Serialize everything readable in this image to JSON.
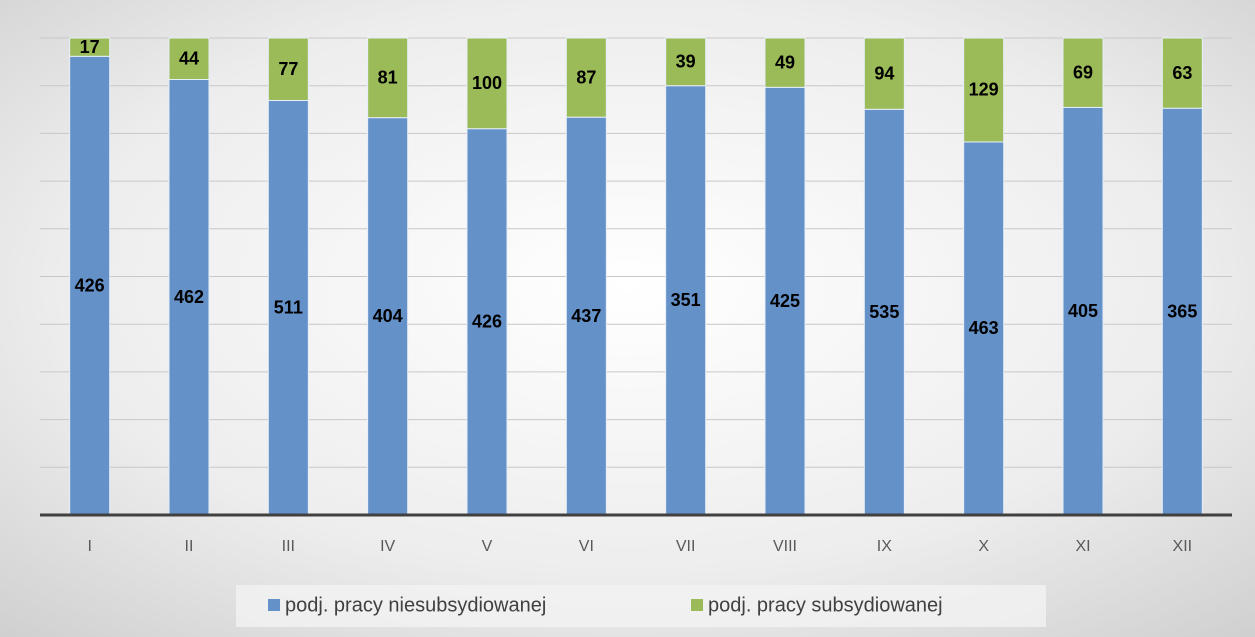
{
  "chart_data": {
    "type": "bar",
    "stacking": "percent",
    "categories": [
      "I",
      "II",
      "III",
      "IV",
      "V",
      "VI",
      "VII",
      "VIII",
      "IX",
      "X",
      "XI",
      "XII"
    ],
    "series": [
      {
        "name": "podj. pracy niesubsydiowanej",
        "color": "#6591c9",
        "values": [
          426,
          462,
          511,
          404,
          426,
          437,
          351,
          425,
          535,
          463,
          405,
          365
        ]
      },
      {
        "name": "podj. pracy subsydiowanej",
        "color": "#9bbb59",
        "values": [
          17,
          44,
          77,
          81,
          100,
          87,
          39,
          49,
          94,
          129,
          69,
          63
        ]
      }
    ],
    "ylim": [
      0,
      100
    ],
    "yticks": [
      0,
      10,
      20,
      30,
      40,
      50,
      60,
      70,
      80,
      90,
      100
    ],
    "grid": true,
    "legend": "bottom"
  }
}
